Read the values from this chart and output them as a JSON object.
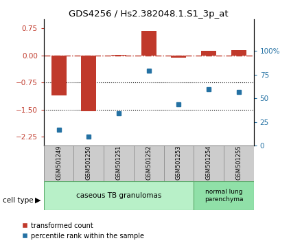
{
  "title": "GDS4256 / Hs2.382048.1.S1_3p_at",
  "samples": [
    "GSM501249",
    "GSM501250",
    "GSM501251",
    "GSM501252",
    "GSM501253",
    "GSM501254",
    "GSM501255"
  ],
  "transformed_count": [
    -1.1,
    -1.55,
    0.02,
    0.68,
    -0.05,
    0.13,
    0.15
  ],
  "percentile_rank": [
    17,
    10,
    34,
    79,
    44,
    60,
    57
  ],
  "left_ylim": [
    -2.5,
    1.0
  ],
  "left_yticks": [
    0.75,
    0,
    -0.75,
    -1.5,
    -2.25
  ],
  "right_ylim": [
    0,
    133.33
  ],
  "right_yticks": [
    0,
    25,
    50,
    75,
    100
  ],
  "right_yticklabels": [
    "0",
    "25",
    "50",
    "75",
    "100%"
  ],
  "bar_color": "#c0392b",
  "dot_color": "#2471a3",
  "hline_y": 0,
  "dotted_lines": [
    -0.75,
    -1.5
  ],
  "group1_label": "caseous TB granulomas",
  "group2_label": "normal lung\nparenchyma",
  "group1_color": "#b8f0c8",
  "group2_color": "#90e0a8",
  "cell_type_label": "cell type",
  "legend_bar_label": "transformed count",
  "legend_dot_label": "percentile rank within the sample",
  "bar_width": 0.5,
  "bar_facecolor": "#c0392b",
  "sample_box_color": "#cccccc",
  "sample_box_edge": "#888888"
}
